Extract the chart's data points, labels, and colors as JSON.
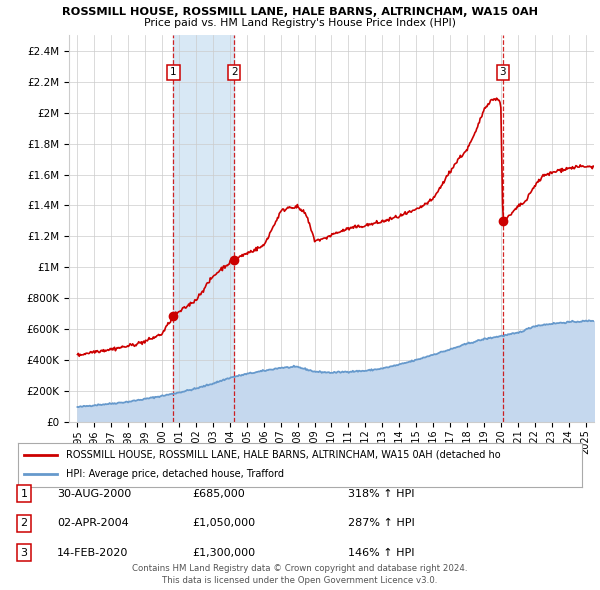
{
  "title1": "ROSSMILL HOUSE, ROSSMILL LANE, HALE BARNS, ALTRINCHAM, WA15 0AH",
  "title2": "Price paid vs. HM Land Registry's House Price Index (HPI)",
  "xlim": [
    1994.5,
    2025.5
  ],
  "ylim": [
    0,
    2500000
  ],
  "yticks": [
    0,
    200000,
    400000,
    600000,
    800000,
    1000000,
    1200000,
    1400000,
    1600000,
    1800000,
    2000000,
    2200000,
    2400000
  ],
  "ytick_labels": [
    "£0",
    "£200K",
    "£400K",
    "£600K",
    "£800K",
    "£1M",
    "£1.2M",
    "£1.4M",
    "£1.6M",
    "£1.8M",
    "£2M",
    "£2.2M",
    "£2.4M"
  ],
  "xticks": [
    1995,
    1996,
    1997,
    1998,
    1999,
    2000,
    2001,
    2002,
    2003,
    2004,
    2005,
    2006,
    2007,
    2008,
    2009,
    2010,
    2011,
    2012,
    2013,
    2014,
    2015,
    2016,
    2017,
    2018,
    2019,
    2020,
    2021,
    2022,
    2023,
    2024,
    2025
  ],
  "sale_dates": [
    2000.66,
    2004.25,
    2020.12
  ],
  "sale_prices": [
    685000,
    1050000,
    1300000
  ],
  "sale_labels": [
    "1",
    "2",
    "3"
  ],
  "sale_date_strs": [
    "30-AUG-2000",
    "02-APR-2004",
    "14-FEB-2020"
  ],
  "sale_price_strs": [
    "£685,000",
    "£1,050,000",
    "£1,300,000"
  ],
  "sale_hpi_strs": [
    "318% ↑ HPI",
    "287% ↑ HPI",
    "146% ↑ HPI"
  ],
  "hpi_color": "#6699cc",
  "hpi_fill_color": "#c5d8ee",
  "price_color": "#cc0000",
  "shading_color": "#d8e8f5",
  "grid_color": "#cccccc",
  "background_color": "#ffffff",
  "legend_label_price": "ROSSMILL HOUSE, ROSSMILL LANE, HALE BARNS, ALTRINCHAM, WA15 0AH (detached ho",
  "legend_label_hpi": "HPI: Average price, detached house, Trafford",
  "footer1": "Contains HM Land Registry data © Crown copyright and database right 2024.",
  "footer2": "This data is licensed under the Open Government Licence v3.0."
}
